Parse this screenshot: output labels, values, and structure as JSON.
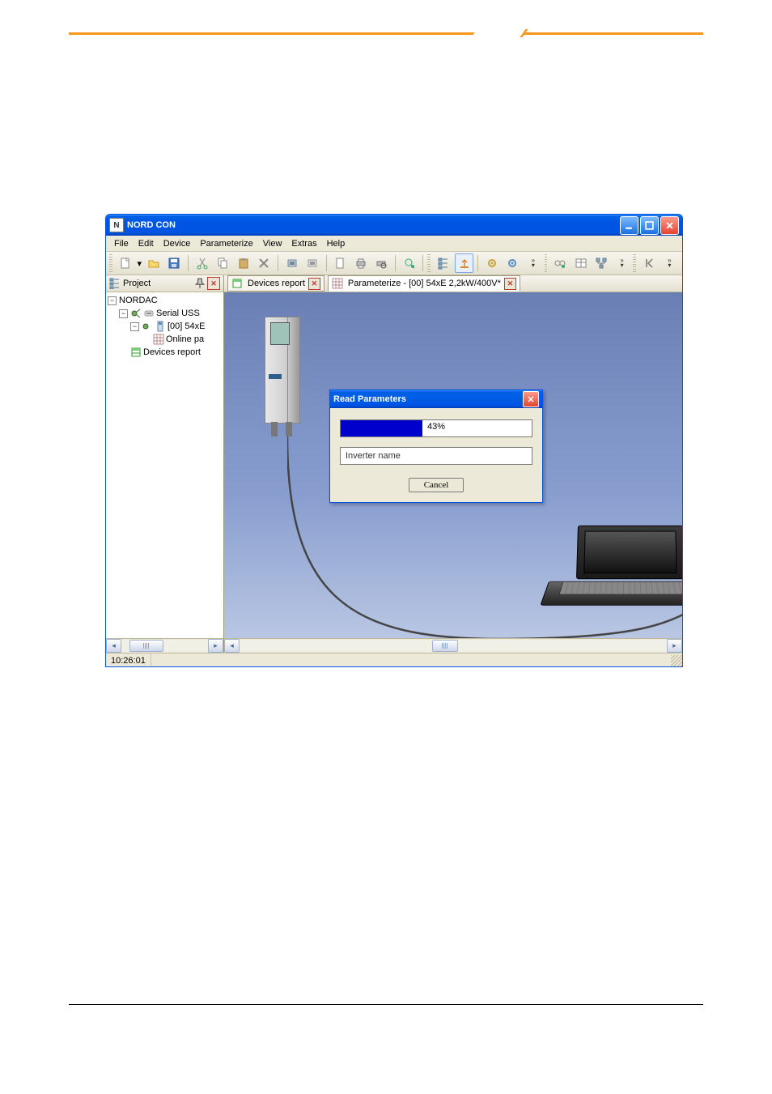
{
  "window": {
    "title": "NORD CON",
    "icon_label": "N"
  },
  "menu": [
    "File",
    "Edit",
    "Device",
    "Parameterize",
    "View",
    "Extras",
    "Help"
  ],
  "toolbar_icons": [
    "new-file-icon",
    "dropdown-icon",
    "open-folder-icon",
    "save-icon",
    "sep",
    "cut-icon",
    "copy-icon",
    "paste-icon",
    "delete-icon",
    "sep",
    "device1-icon",
    "device2-icon",
    "sep",
    "page-icon",
    "print-icon",
    "print-preview-icon",
    "sep",
    "search-icon",
    "sep",
    "grip",
    "tree-icon",
    "pin-up-icon",
    "sep",
    "gear1-icon",
    "gear2-icon",
    "overflow",
    "grip",
    "link-icon",
    "table-icon",
    "nodes-icon",
    "overflow",
    "grip",
    "goto-first-icon",
    "overflow"
  ],
  "sidebar": {
    "title": "Project",
    "tree": {
      "root": "NORDAC",
      "serial": "Serial USS",
      "device": "[00] 54xE",
      "online": "Online pa",
      "report": "Devices report"
    }
  },
  "tabs": [
    {
      "label": "Devices report",
      "active": false
    },
    {
      "label": "Parameterize - [00] 54xE 2,2kW/400V*",
      "active": true
    }
  ],
  "dialog": {
    "title": "Read Parameters",
    "progress_pct": 43,
    "progress_label": "43%",
    "status_text": "Inverter name",
    "cancel_label": "Cancel"
  },
  "statusbar": {
    "time": "10:26:01"
  },
  "colors": {
    "xp_blue": "#0054e3",
    "progress_fill": "#0000cc",
    "dialog_bg": "#ece9d8",
    "canvas_top": "#6a7fb5",
    "canvas_bottom": "#b9c6e3",
    "orange": "#f7941e"
  }
}
